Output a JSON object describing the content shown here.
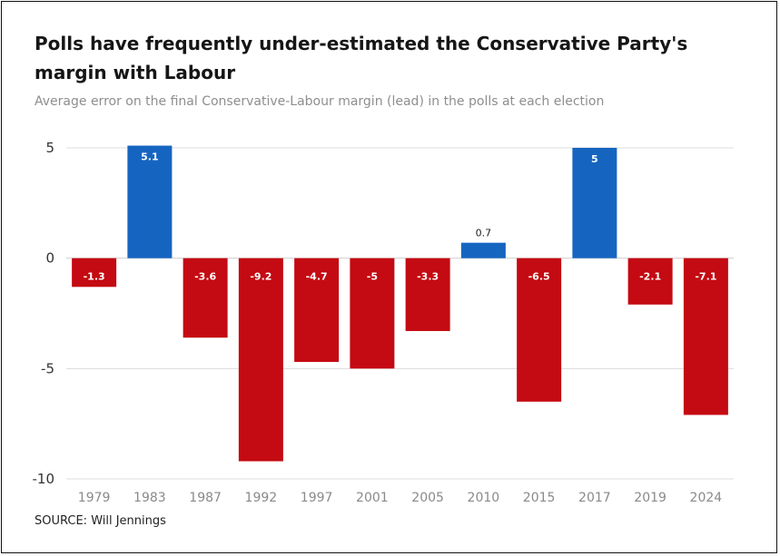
{
  "header": {
    "title": "Polls have frequently under-estimated the Conservative Party's margin with Labour",
    "subtitle": "Average error on the final Conservative-Labour margin (lead) in the polls at each election"
  },
  "footer": {
    "source": "SOURCE: Will Jennings"
  },
  "colors": {
    "positive": "#1565c0",
    "negative": "#c40a12"
  },
  "chart_data": {
    "type": "bar",
    "title": "Polls have frequently under-estimated the Conservative Party's margin with Labour",
    "subtitle": "Average error on the final Conservative-Labour margin (lead) in the polls at each election",
    "categories": [
      "1979",
      "1983",
      "1987",
      "1992",
      "1997",
      "2001",
      "2005",
      "2010",
      "2015",
      "2017",
      "2019",
      "2024"
    ],
    "values": [
      -1.3,
      5.1,
      -3.6,
      -9.2,
      -4.7,
      -5,
      -3.3,
      0.7,
      -6.5,
      5,
      -2.1,
      -7.1
    ],
    "labels": [
      "-1.3",
      "5.1",
      "-3.6",
      "-9.2",
      "-4.7",
      "-5",
      "-3.3",
      "0.7",
      "-6.5",
      "5",
      "-2.1",
      "-7.1"
    ],
    "ylim": [
      -10,
      5
    ],
    "yticks": [
      5,
      0,
      -5,
      -10
    ],
    "ytick_labels": [
      "5",
      "0",
      "-5",
      "-10"
    ],
    "xlabel": "",
    "ylabel": "",
    "grid": true,
    "legend": "none"
  }
}
